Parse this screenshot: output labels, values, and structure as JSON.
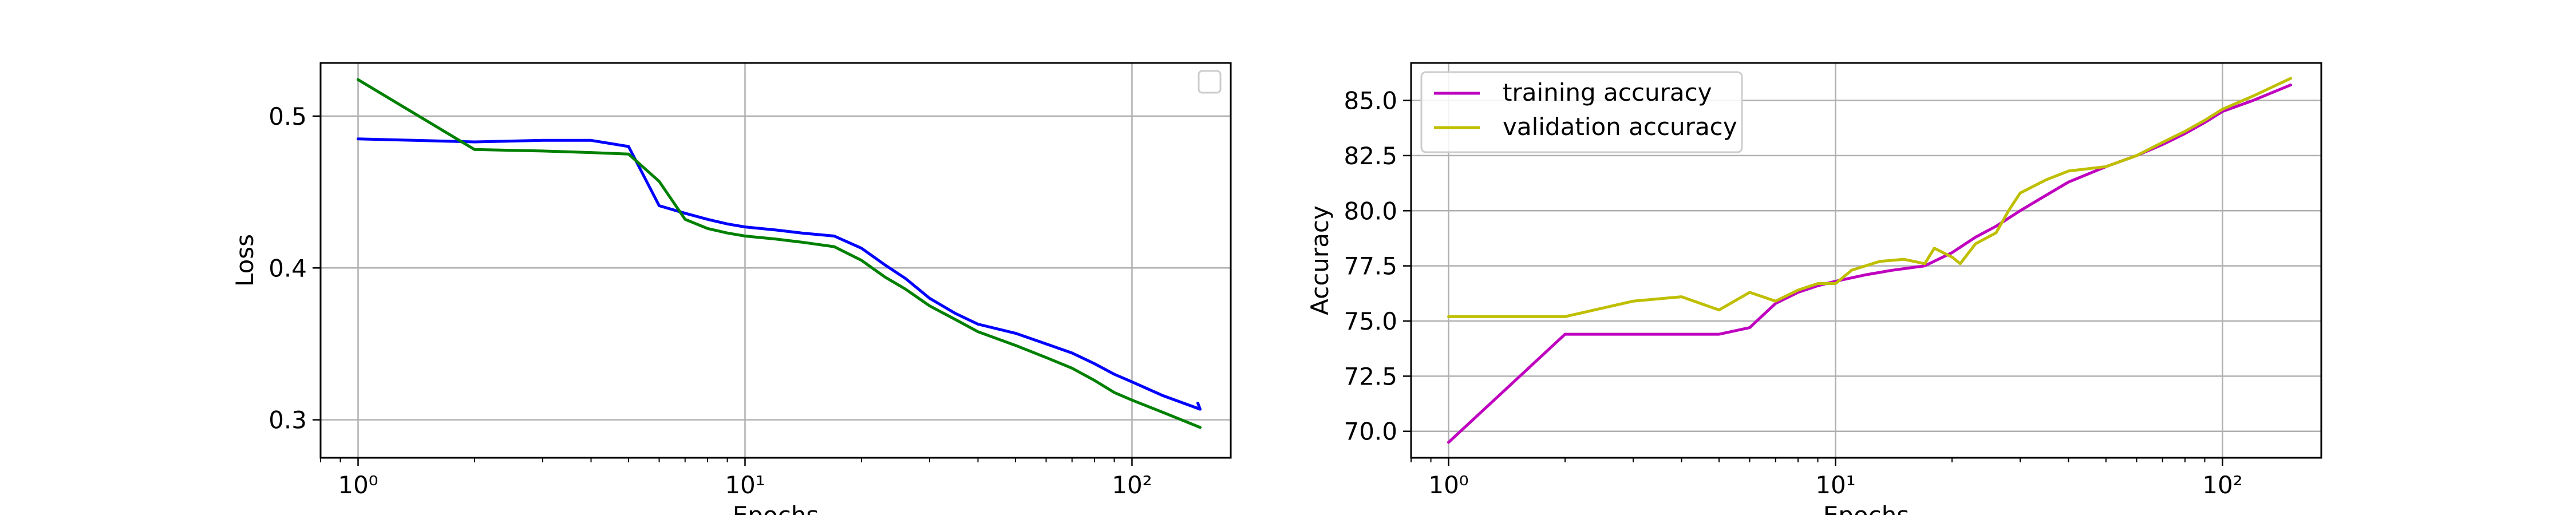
{
  "chart_data": [
    {
      "type": "line",
      "xlabel": "Epochs",
      "ylabel": "Loss",
      "xscale": "log",
      "xlim": [
        0.8,
        180
      ],
      "ylim": [
        0.275,
        0.535
      ],
      "x_ticks": [
        {
          "value": 1,
          "label": "10⁰"
        },
        {
          "value": 10,
          "label": "10¹"
        },
        {
          "value": 100,
          "label": "10²"
        }
      ],
      "y_ticks": [
        {
          "value": 0.3,
          "label": "0.3"
        },
        {
          "value": 0.4,
          "label": "0.4"
        },
        {
          "value": 0.5,
          "label": "0.5"
        }
      ],
      "grid": true,
      "legend": {
        "position": "top-right",
        "entries": []
      },
      "series": [
        {
          "color": "#0000ff",
          "points": [
            [
              1,
              0.485
            ],
            [
              2,
              0.483
            ],
            [
              3,
              0.484
            ],
            [
              4,
              0.484
            ],
            [
              5,
              0.48
            ],
            [
              6,
              0.441
            ],
            [
              7,
              0.436
            ],
            [
              8,
              0.432
            ],
            [
              9,
              0.429
            ],
            [
              10,
              0.427
            ],
            [
              12,
              0.425
            ],
            [
              14,
              0.423
            ],
            [
              17,
              0.421
            ],
            [
              20,
              0.413
            ],
            [
              23,
              0.402
            ],
            [
              26,
              0.393
            ],
            [
              30,
              0.38
            ],
            [
              35,
              0.37
            ],
            [
              40,
              0.363
            ],
            [
              50,
              0.357
            ],
            [
              60,
              0.35
            ],
            [
              70,
              0.344
            ],
            [
              80,
              0.337
            ],
            [
              90,
              0.33
            ],
            [
              100,
              0.325
            ],
            [
              120,
              0.316
            ],
            [
              150,
              0.307
            ],
            [
              148,
              0.311
            ]
          ]
        },
        {
          "color": "#008000",
          "points": [
            [
              1,
              0.524
            ],
            [
              2,
              0.478
            ],
            [
              3,
              0.477
            ],
            [
              4,
              0.476
            ],
            [
              5,
              0.475
            ],
            [
              6,
              0.457
            ],
            [
              7,
              0.432
            ],
            [
              8,
              0.426
            ],
            [
              9,
              0.423
            ],
            [
              10,
              0.421
            ],
            [
              12,
              0.419
            ],
            [
              14,
              0.417
            ],
            [
              17,
              0.414
            ],
            [
              20,
              0.405
            ],
            [
              23,
              0.394
            ],
            [
              26,
              0.386
            ],
            [
              30,
              0.375
            ],
            [
              35,
              0.366
            ],
            [
              40,
              0.358
            ],
            [
              50,
              0.349
            ],
            [
              60,
              0.341
            ],
            [
              70,
              0.334
            ],
            [
              80,
              0.326
            ],
            [
              90,
              0.318
            ],
            [
              100,
              0.313
            ],
            [
              120,
              0.305
            ],
            [
              150,
              0.295
            ]
          ]
        }
      ]
    },
    {
      "type": "line",
      "xlabel": "Epochs",
      "ylabel": "Accuracy",
      "xscale": "log",
      "xlim": [
        0.8,
        180
      ],
      "ylim": [
        68.8,
        86.7
      ],
      "x_ticks": [
        {
          "value": 1,
          "label": "10⁰"
        },
        {
          "value": 10,
          "label": "10¹"
        },
        {
          "value": 100,
          "label": "10²"
        }
      ],
      "y_ticks": [
        {
          "value": 70.0,
          "label": "70.0"
        },
        {
          "value": 72.5,
          "label": "72.5"
        },
        {
          "value": 75.0,
          "label": "75.0"
        },
        {
          "value": 77.5,
          "label": "77.5"
        },
        {
          "value": 80.0,
          "label": "80.0"
        },
        {
          "value": 82.5,
          "label": "82.5"
        },
        {
          "value": 85.0,
          "label": "85.0"
        }
      ],
      "grid": true,
      "legend": {
        "position": "top-left"
      },
      "series": [
        {
          "name": "training accuracy",
          "color": "#bf00bf",
          "points": [
            [
              1,
              69.5
            ],
            [
              2,
              74.4
            ],
            [
              3,
              74.4
            ],
            [
              4,
              74.4
            ],
            [
              5,
              74.4
            ],
            [
              6,
              74.7
            ],
            [
              7,
              75.8
            ],
            [
              8,
              76.3
            ],
            [
              9,
              76.6
            ],
            [
              10,
              76.8
            ],
            [
              12,
              77.1
            ],
            [
              14,
              77.3
            ],
            [
              17,
              77.5
            ],
            [
              20,
              78.1
            ],
            [
              23,
              78.8
            ],
            [
              26,
              79.3
            ],
            [
              30,
              80.0
            ],
            [
              35,
              80.7
            ],
            [
              40,
              81.3
            ],
            [
              50,
              82.0
            ],
            [
              60,
              82.5
            ],
            [
              70,
              83.0
            ],
            [
              80,
              83.5
            ],
            [
              90,
              84.0
            ],
            [
              100,
              84.5
            ],
            [
              120,
              85.0
            ],
            [
              150,
              85.7
            ]
          ]
        },
        {
          "name": "validation accuracy",
          "color": "#bfbf00",
          "points": [
            [
              1,
              75.2
            ],
            [
              2,
              75.2
            ],
            [
              3,
              75.9
            ],
            [
              4,
              76.1
            ],
            [
              5,
              75.5
            ],
            [
              6,
              76.3
            ],
            [
              7,
              75.9
            ],
            [
              8,
              76.4
            ],
            [
              9,
              76.7
            ],
            [
              10,
              76.7
            ],
            [
              11,
              77.3
            ],
            [
              13,
              77.7
            ],
            [
              15,
              77.8
            ],
            [
              17,
              77.6
            ],
            [
              18,
              78.3
            ],
            [
              20,
              77.9
            ],
            [
              21,
              77.6
            ],
            [
              23,
              78.5
            ],
            [
              26,
              79.0
            ],
            [
              28,
              80.0
            ],
            [
              30,
              80.8
            ],
            [
              35,
              81.4
            ],
            [
              40,
              81.8
            ],
            [
              50,
              82.0
            ],
            [
              60,
              82.5
            ],
            [
              70,
              83.1
            ],
            [
              80,
              83.6
            ],
            [
              90,
              84.1
            ],
            [
              100,
              84.6
            ],
            [
              120,
              85.2
            ],
            [
              150,
              86.0
            ]
          ]
        }
      ]
    }
  ]
}
